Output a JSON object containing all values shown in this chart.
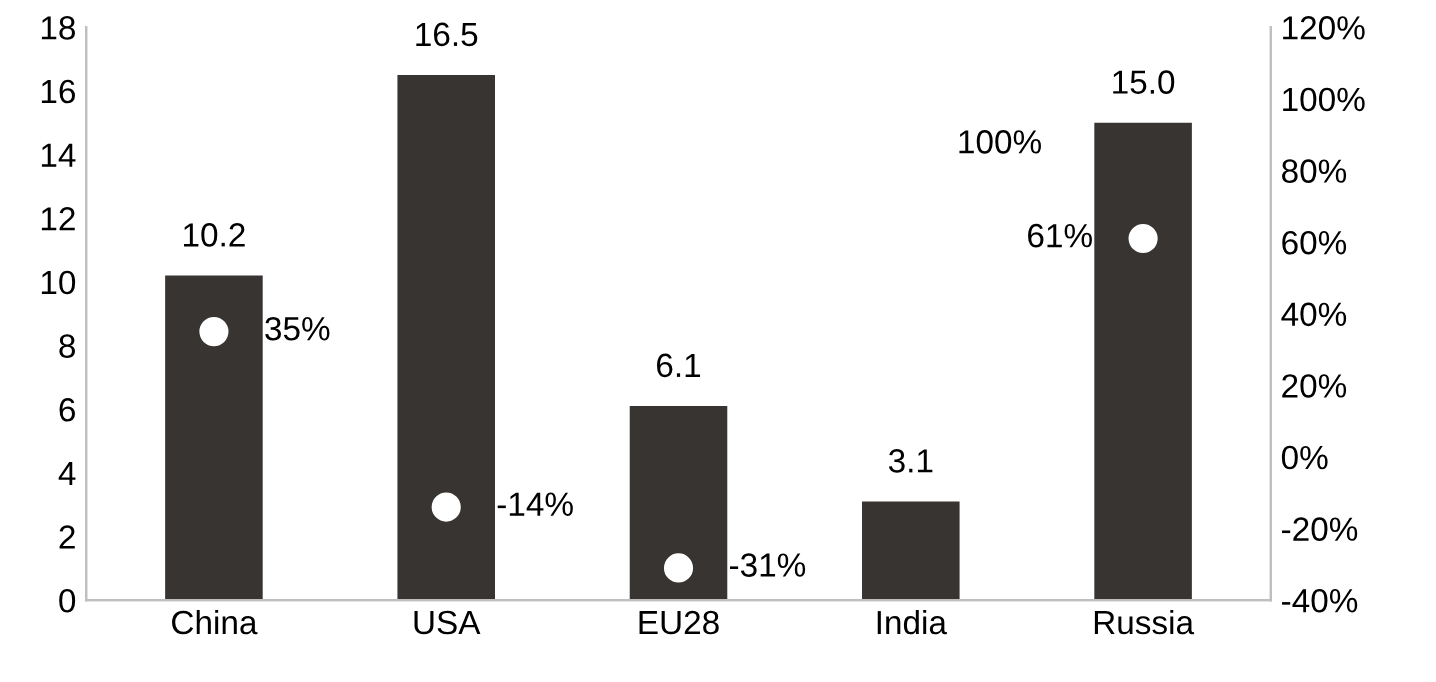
{
  "chart_data": {
    "type": "bar",
    "categories": [
      "China",
      "USA",
      "EU28",
      "India",
      "Russia"
    ],
    "series": [
      {
        "color": "#383432",
        "values": [
          10.2,
          16.5,
          6.1,
          3.1,
          15.0
        ],
        "value_labels": [
          "10.2",
          "16.5",
          "6.1",
          "3.1",
          "15.0"
        ]
      },
      {
        "type": "scatter",
        "axis": "y2",
        "color": "#ffffff",
        "marker": "circle",
        "values": [
          35,
          -14,
          -31,
          null,
          61
        ],
        "value_labels": [
          "35%",
          "-14%",
          "-31%",
          null,
          "61%"
        ]
      }
    ],
    "annotations": [
      "100%"
    ],
    "ylim": [
      0,
      18
    ],
    "yticks": [
      0,
      2,
      4,
      6,
      8,
      10,
      12,
      14,
      16,
      18
    ],
    "y2lim": [
      -40,
      120
    ],
    "y2ticks": [
      {
        "value": -40,
        "label": "-40%"
      },
      {
        "value": -20,
        "label": "-20%"
      },
      {
        "value": 0,
        "label": "0%"
      },
      {
        "value": 20,
        "label": "20%"
      },
      {
        "value": 40,
        "label": "40%"
      },
      {
        "value": 60,
        "label": "60%"
      },
      {
        "value": 80,
        "label": "80%"
      },
      {
        "value": 100,
        "label": "100%"
      },
      {
        "value": 120,
        "label": "120%"
      }
    ],
    "grid": false,
    "legend": false
  }
}
